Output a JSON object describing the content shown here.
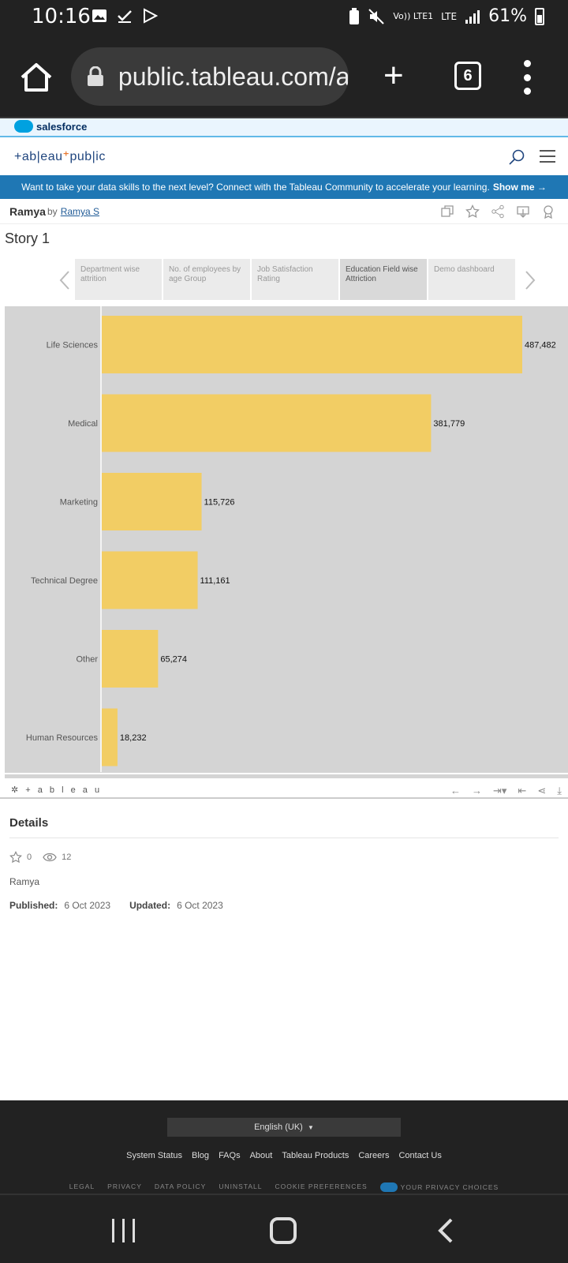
{
  "statusbar": {
    "time": "10:16",
    "signal_label": "Vo)) LTE1",
    "network": "LTE",
    "battery": "61%"
  },
  "browser": {
    "url": "public.tableau.com/a",
    "tab_count": "6"
  },
  "salesforce": {
    "label": "salesforce"
  },
  "tableau_public": {
    "logo_text": "+ab|eau",
    "logo_suffix": "pub|ic"
  },
  "banner": {
    "text": "Want to take your data skills to the next level? Connect with the Tableau Community to accelerate your learning.",
    "cta": "Show me →"
  },
  "viz": {
    "title": "Ramya",
    "by": "by",
    "author": "Ramya S"
  },
  "story": {
    "title": "Story 1",
    "points": [
      {
        "label": "Department wise attrition"
      },
      {
        "label": "No. of employees by age Group"
      },
      {
        "label": "Job Satisfaction Rating"
      },
      {
        "label": "Education Field wise Attriction"
      },
      {
        "label": "Demo dashboard"
      }
    ]
  },
  "chart_data": {
    "type": "bar",
    "orientation": "horizontal",
    "categories": [
      "Life Sciences",
      "Medical",
      "Marketing",
      "Technical Degree",
      "Other",
      "Human Resources"
    ],
    "values": [
      487482,
      381779,
      115726,
      111161,
      65274,
      18232
    ],
    "data_labels": [
      "487,482",
      "381,779",
      "115,726",
      "111,161",
      "65,274",
      "18,232"
    ],
    "xlim": [
      0,
      487482
    ],
    "bar_color": "#f2cd64",
    "background": "#d4d4d4",
    "grid": false
  },
  "tableau_bar": {
    "logo": "+ a b l e a u"
  },
  "details": {
    "heading": "Details",
    "favorites": "0",
    "views": "12",
    "owner": "Ramya",
    "published_label": "Published:",
    "published": "6 Oct 2023",
    "updated_label": "Updated:",
    "updated": "6 Oct 2023"
  },
  "footer": {
    "language": "English (UK)",
    "links": [
      "System Status",
      "Blog",
      "FAQs",
      "About",
      "Tableau Products",
      "Careers",
      "Contact Us"
    ],
    "legal": [
      "LEGAL",
      "PRIVACY",
      "DATA POLICY",
      "UNINSTALL",
      "COOKIE PREFERENCES"
    ],
    "privacy_choices": "YOUR PRIVACY CHOICES"
  }
}
